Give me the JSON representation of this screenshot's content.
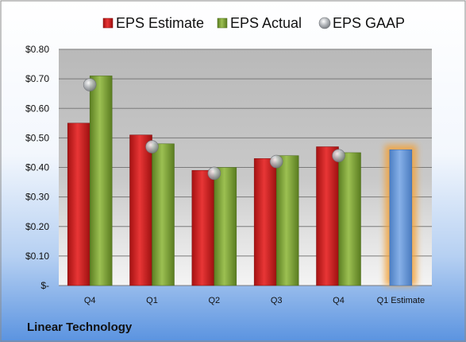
{
  "company": "Linear Technology",
  "colors": {
    "estimate": "#d42222",
    "actual": "#7fa33a",
    "gaap": "#a8acb0",
    "highlight_estimate": "#6a9ad8",
    "highlight_glow": "#f2a23a"
  },
  "chart_data": {
    "type": "bar",
    "categories": [
      "Q4",
      "Q1",
      "Q2",
      "Q3",
      "Q4",
      "Q1 Estimate"
    ],
    "series": [
      {
        "name": "EPS Estimate",
        "type": "bar",
        "values": [
          0.55,
          0.51,
          0.39,
          0.43,
          0.47,
          0.46
        ]
      },
      {
        "name": "EPS Actual",
        "type": "bar",
        "values": [
          0.71,
          0.48,
          0.4,
          0.44,
          0.45,
          null
        ]
      },
      {
        "name": "EPS GAAP",
        "type": "marker",
        "values": [
          0.68,
          0.47,
          0.38,
          0.42,
          0.44,
          null
        ]
      }
    ],
    "yticks": [
      "$0.80",
      "$0.70",
      "$0.60",
      "$0.50",
      "$0.40",
      "$0.30",
      "$0.20",
      "$0.10",
      "$-"
    ],
    "ylim": [
      0,
      0.8
    ],
    "legend_position": "top",
    "grid": true
  }
}
